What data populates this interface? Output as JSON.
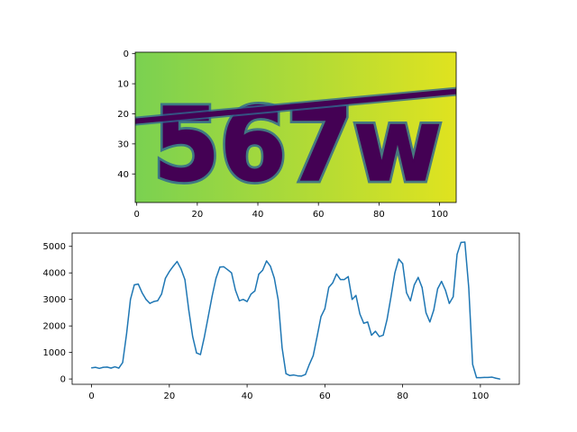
{
  "figure": {
    "background": "#ffffff"
  },
  "image_panel": {
    "type": "heatmap",
    "colormap": "viridis",
    "captcha_text": "567w",
    "xlim": [
      0,
      105
    ],
    "ylim": [
      0,
      49
    ],
    "x_ticks": [
      0,
      20,
      40,
      60,
      80,
      100
    ],
    "y_ticks": [
      0,
      10,
      20,
      30,
      40
    ],
    "colors": {
      "bg_left": "#7ad151",
      "bg_right": "#e0e31f",
      "ink": "#440154",
      "halo": "#31688e"
    }
  },
  "chart_data": [
    {
      "type": "heatmap",
      "title": "",
      "xlabel": "",
      "ylabel": "",
      "xlim": [
        0,
        105
      ],
      "ylim": [
        0,
        49
      ],
      "content": "567w"
    },
    {
      "type": "line",
      "title": "",
      "xlabel": "",
      "ylabel": "",
      "xlim": [
        -5,
        110
      ],
      "ylim": [
        -200,
        5500
      ],
      "x_ticks": [
        0,
        20,
        40,
        60,
        80,
        100
      ],
      "y_ticks": [
        0,
        1000,
        2000,
        3000,
        4000,
        5000
      ],
      "grid": false,
      "color": "#1f77b4",
      "x": [
        0,
        1,
        2,
        3,
        4,
        5,
        6,
        7,
        8,
        9,
        10,
        11,
        12,
        13,
        14,
        15,
        16,
        17,
        18,
        19,
        20,
        21,
        22,
        23,
        24,
        25,
        26,
        27,
        28,
        29,
        30,
        31,
        32,
        33,
        34,
        35,
        36,
        37,
        38,
        39,
        40,
        41,
        42,
        43,
        44,
        45,
        46,
        47,
        48,
        49,
        50,
        51,
        52,
        53,
        54,
        55,
        56,
        57,
        58,
        59,
        60,
        61,
        62,
        63,
        64,
        65,
        66,
        67,
        68,
        69,
        70,
        71,
        72,
        73,
        74,
        75,
        76,
        77,
        78,
        79,
        80,
        81,
        82,
        83,
        84,
        85,
        86,
        87,
        88,
        89,
        90,
        91,
        92,
        93,
        94,
        95,
        96,
        97,
        98,
        99,
        100,
        101,
        102,
        103,
        104,
        105
      ],
      "values": [
        420,
        440,
        400,
        440,
        450,
        410,
        460,
        410,
        620,
        1700,
        3000,
        3550,
        3580,
        3250,
        3000,
        2850,
        2920,
        2950,
        3200,
        3800,
        4050,
        4250,
        4430,
        4150,
        3750,
        2600,
        1600,
        980,
        920,
        1580,
        2350,
        3120,
        3800,
        4220,
        4230,
        4120,
        4000,
        3350,
        2950,
        3000,
        2920,
        3200,
        3320,
        3950,
        4100,
        4450,
        4250,
        3800,
        2980,
        1180,
        200,
        130,
        150,
        120,
        110,
        170,
        550,
        880,
        1600,
        2350,
        2650,
        3450,
        3620,
        3960,
        3750,
        3750,
        3860,
        3000,
        3150,
        2450,
        2100,
        2150,
        1650,
        1800,
        1600,
        1650,
        2250,
        3100,
        4000,
        4520,
        4350,
        3250,
        2950,
        3550,
        3830,
        3450,
        2500,
        2150,
        2600,
        3400,
        3680,
        3350,
        2850,
        3100,
        4700,
        5150,
        5160,
        3450,
        550,
        50,
        50,
        60,
        60,
        70,
        30,
        0
      ]
    }
  ]
}
